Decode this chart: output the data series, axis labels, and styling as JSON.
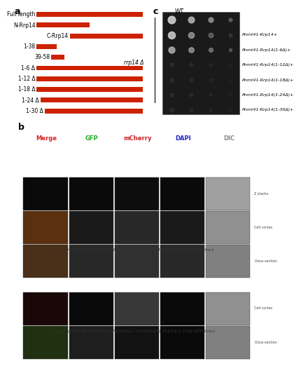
{
  "panel_a": {
    "labels": [
      "Full length",
      "N-Rrp14",
      "C-Rrp14",
      "1-38",
      "39-58",
      "1-6 Δ",
      "1-12 Δ",
      "1-18 Δ",
      "1-24 Δ",
      "1-30 Δ"
    ],
    "bar_starts": [
      0.12,
      0.12,
      0.37,
      0.12,
      0.23,
      0.12,
      0.12,
      0.12,
      0.15,
      0.18
    ],
    "bar_ends": [
      0.92,
      0.52,
      0.92,
      0.27,
      0.33,
      0.92,
      0.92,
      0.92,
      0.92,
      0.92
    ],
    "bar_color": "#cc2200",
    "bar_height": 0.45,
    "label_fontsize": 5.5
  },
  "panel_c": {
    "title": "WT",
    "rrp14_label": "rrp14 Δ",
    "row_labels": [
      "Pnmt41-Rrp14+",
      "Pnmt41-Rrp14(1-6Δ)+",
      "Pnmt41-Rrp14(1-12Δ)+",
      "Pnmt41-Rrp14(1-18Δ)+",
      "Pnmt41-Rrp14(1-24Δ)+",
      "Pnmt41-Rrp14(1-30Δ)+"
    ],
    "n_cols": 4,
    "n_rows": 7,
    "bg_color": "#1a1a1a",
    "label_fontsize": 4.5
  },
  "panel_b": {
    "col_headers": [
      "Merge",
      "GFP",
      "mCherry",
      "DAPI",
      "DIC"
    ],
    "col_header_colors": [
      "#dd2222",
      "#22aa22",
      "#cc2222",
      "#2222cc",
      "#888888"
    ],
    "group1_caption": "Leu:Pnmt41-Pil1-mCherry-Pol5;Leu+ Ars:Pnmt41-Rrp14(1-6Δ) GFP:Ura+",
    "group2_caption": "Leu:Pnmt41-Pil1-mCherry-Pol5;Leu+ Ars:Pnmt41-Rrp14(1-12Δ) GFP:Ura+",
    "side_labels_g1": [
      "Z stacks",
      "Cell cortex",
      "Cross-section"
    ],
    "side_labels_g2": [
      "Cell cortex",
      "Cross-section"
    ],
    "caption_fontsize": 4.5,
    "header_fontsize": 6
  },
  "fig_bg": "#ffffff",
  "panel_a_label": "a",
  "panel_b_label": "b",
  "panel_c_label": "c"
}
